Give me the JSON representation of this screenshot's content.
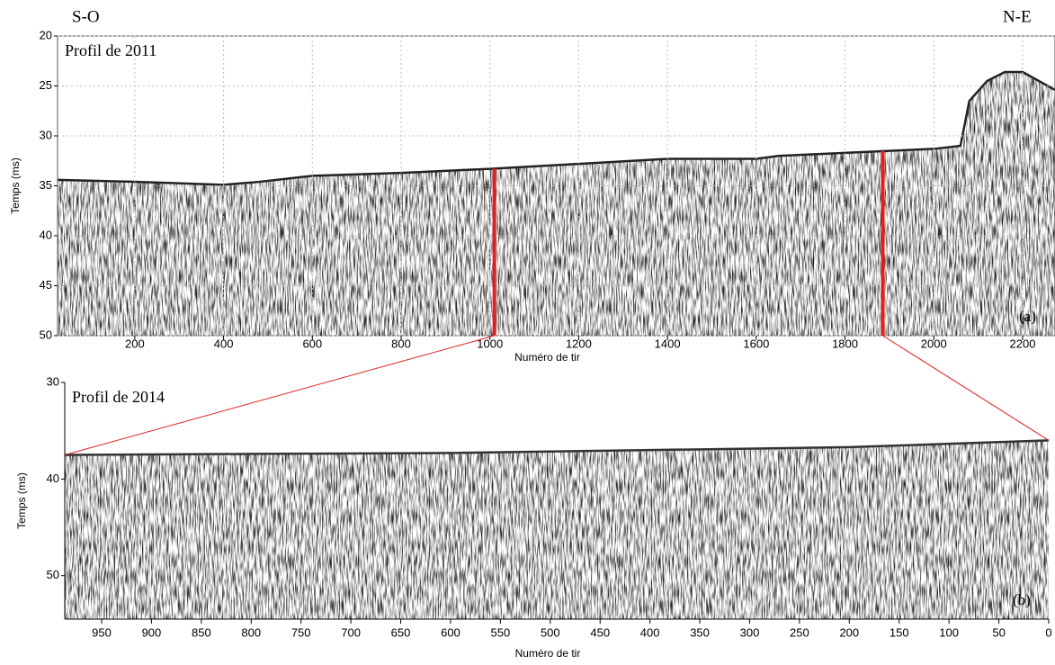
{
  "chart_data": [
    {
      "type": "seismic",
      "title": "Profil de 2011",
      "panel_label": "(a)",
      "left_label": "S-O",
      "right_label": "N-E",
      "x_label": "Numéro de tir",
      "y_label": "Temps (ms)",
      "xlim": [
        26,
        2273
      ],
      "xticks": [
        200,
        400,
        600,
        800,
        1000,
        1200,
        1400,
        1600,
        1800,
        2000,
        2200
      ],
      "ylim": [
        20,
        50
      ],
      "yticks": [
        20,
        25,
        30,
        35,
        40,
        45,
        50
      ],
      "y_inverted": true,
      "grid": true,
      "series": [
        {
          "color": "#222222",
          "x": [
            26,
            200,
            400,
            480,
            600,
            800,
            1000,
            1200,
            1400,
            1600,
            1650,
            1800,
            2000,
            2060,
            2080,
            2120,
            2160,
            2200,
            2273
          ],
          "values": [
            34.4,
            34.6,
            34.9,
            34.6,
            34.0,
            33.7,
            33.3,
            32.8,
            32.3,
            32.3,
            32.0,
            31.7,
            31.3,
            31.0,
            26.5,
            24.5,
            23.6,
            23.6,
            25.4
          ]
        }
      ],
      "markers": [
        1010,
        1885
      ],
      "marker_color": "#e02020"
    },
    {
      "type": "seismic",
      "title": "Profil de 2014",
      "panel_label": "(b)",
      "x_label": "Numéro de tir",
      "y_label": "Temps (ms)",
      "xlim": [
        987,
        0
      ],
      "xticks": [
        950,
        900,
        850,
        800,
        750,
        700,
        650,
        600,
        550,
        500,
        450,
        400,
        350,
        300,
        250,
        200,
        150,
        100,
        50,
        0
      ],
      "ylim": [
        30,
        54.5
      ],
      "yticks": [
        30,
        40,
        50
      ],
      "y_inverted": true,
      "grid": false,
      "series": [
        {
          "color": "#333333",
          "x": [
            987,
            800,
            600,
            400,
            200,
            0
          ],
          "values": [
            37.5,
            37.4,
            37.3,
            37.0,
            36.7,
            36.0
          ]
        }
      ]
    }
  ]
}
